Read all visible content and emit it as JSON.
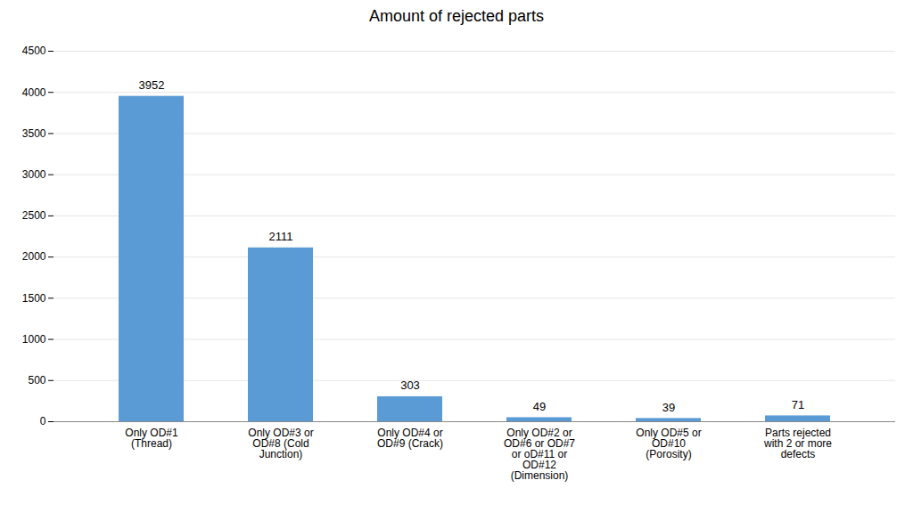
{
  "chart_data": {
    "type": "bar",
    "title": "Amount of rejected parts",
    "categories": [
      "Only OD#1\n(Thread)",
      "Only OD#3 or\nOD#8 (Cold\nJunction)",
      "Only OD#4 or\nOD#9 (Crack)",
      "Only OD#2 or\nOD#6 or OD#7\nor oD#11 or\nOD#12\n(Dimension)",
      "Only OD#5 or\nOD#10\n(Porosity)",
      "Parts rejected\nwith 2 or more\ndefects"
    ],
    "values": [
      3952,
      2111,
      303,
      49,
      39,
      71
    ],
    "color": "#5B9BD5",
    "ylim": [
      0,
      4500
    ],
    "yticks": [
      0,
      500,
      1000,
      1500,
      2000,
      2500,
      3000,
      3500,
      4000,
      4500
    ],
    "grid": true,
    "data_labels": true
  }
}
